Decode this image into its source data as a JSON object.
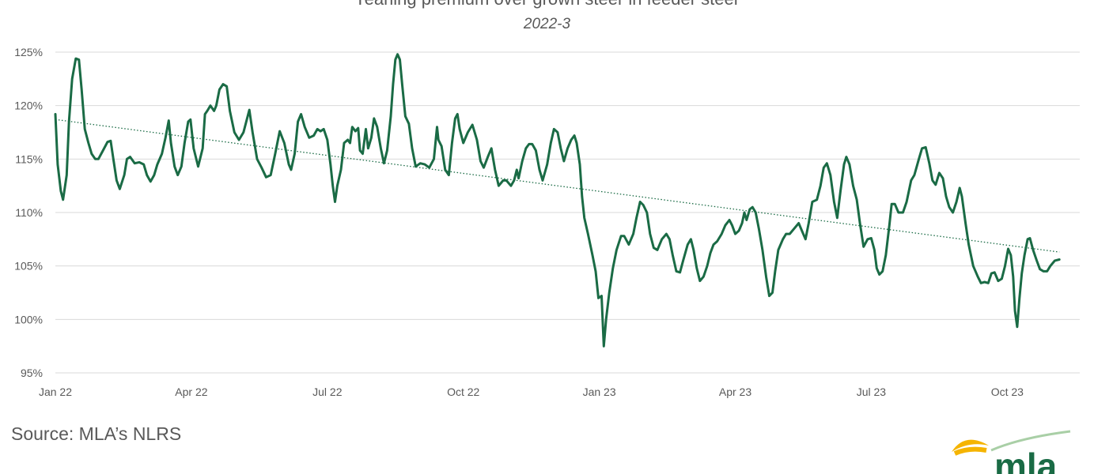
{
  "chart_data": {
    "type": "line",
    "title": "Yearling premium over grown steer in feeder steer",
    "subtitle": "2022-3",
    "ylim": [
      95,
      125
    ],
    "yticks": [
      95,
      100,
      105,
      110,
      115,
      120,
      125
    ],
    "ytick_labels": [
      "95%",
      "100%",
      "105%",
      "110%",
      "115%",
      "120%",
      "125%"
    ],
    "xlim": [
      0,
      22.6
    ],
    "xticks": [
      0,
      3,
      6,
      9,
      12,
      15,
      18,
      21
    ],
    "xtick_labels": [
      "Jan 22",
      "Apr 22",
      "Jul 22",
      "Oct 22",
      "Jan 23",
      "Apr 23",
      "Jul 23",
      "Oct 23"
    ],
    "grid": "horizontal",
    "series": [
      {
        "color": "#1a6b45",
        "points": [
          [
            0.0,
            119.2
          ],
          [
            0.05,
            114.5
          ],
          [
            0.12,
            112.0
          ],
          [
            0.17,
            111.2
          ],
          [
            0.25,
            113.5
          ],
          [
            0.3,
            118.5
          ],
          [
            0.37,
            122.5
          ],
          [
            0.45,
            124.4
          ],
          [
            0.52,
            124.3
          ],
          [
            0.58,
            121.5
          ],
          [
            0.65,
            117.8
          ],
          [
            0.73,
            116.5
          ],
          [
            0.8,
            115.5
          ],
          [
            0.88,
            115.0
          ],
          [
            0.95,
            115.0
          ],
          [
            1.05,
            115.8
          ],
          [
            1.15,
            116.6
          ],
          [
            1.22,
            116.7
          ],
          [
            1.28,
            115.0
          ],
          [
            1.35,
            113.0
          ],
          [
            1.42,
            112.2
          ],
          [
            1.52,
            113.5
          ],
          [
            1.58,
            115.0
          ],
          [
            1.65,
            115.2
          ],
          [
            1.75,
            114.6
          ],
          [
            1.85,
            114.7
          ],
          [
            1.95,
            114.5
          ],
          [
            2.02,
            113.5
          ],
          [
            2.1,
            112.9
          ],
          [
            2.18,
            113.5
          ],
          [
            2.25,
            114.5
          ],
          [
            2.35,
            115.5
          ],
          [
            2.43,
            117.0
          ],
          [
            2.5,
            118.6
          ],
          [
            2.55,
            116.5
          ],
          [
            2.63,
            114.3
          ],
          [
            2.7,
            113.5
          ],
          [
            2.78,
            114.3
          ],
          [
            2.85,
            116.5
          ],
          [
            2.93,
            118.5
          ],
          [
            2.98,
            118.7
          ],
          [
            3.05,
            116.0
          ],
          [
            3.15,
            114.3
          ],
          [
            3.25,
            116.0
          ],
          [
            3.3,
            119.2
          ],
          [
            3.35,
            119.5
          ],
          [
            3.42,
            120.0
          ],
          [
            3.5,
            119.5
          ],
          [
            3.55,
            120.0
          ],
          [
            3.62,
            121.5
          ],
          [
            3.7,
            122.0
          ],
          [
            3.78,
            121.8
          ],
          [
            3.85,
            119.5
          ],
          [
            3.95,
            117.5
          ],
          [
            4.05,
            116.8
          ],
          [
            4.15,
            117.5
          ],
          [
            4.28,
            119.6
          ],
          [
            4.35,
            117.5
          ],
          [
            4.45,
            115.0
          ],
          [
            4.55,
            114.2
          ],
          [
            4.65,
            113.3
          ],
          [
            4.75,
            113.5
          ],
          [
            4.85,
            115.5
          ],
          [
            4.95,
            117.6
          ],
          [
            5.05,
            116.5
          ],
          [
            5.15,
            114.5
          ],
          [
            5.2,
            114.0
          ],
          [
            5.28,
            115.5
          ],
          [
            5.35,
            118.5
          ],
          [
            5.42,
            119.2
          ],
          [
            5.5,
            118.0
          ],
          [
            5.6,
            117.0
          ],
          [
            5.7,
            117.2
          ],
          [
            5.78,
            117.8
          ],
          [
            5.85,
            117.6
          ],
          [
            5.92,
            117.8
          ],
          [
            6.0,
            116.8
          ],
          [
            6.07,
            114.5
          ],
          [
            6.12,
            112.5
          ],
          [
            6.17,
            111.0
          ],
          [
            6.22,
            112.5
          ],
          [
            6.3,
            114.0
          ],
          [
            6.37,
            116.5
          ],
          [
            6.45,
            116.8
          ],
          [
            6.5,
            116.5
          ],
          [
            6.55,
            118.0
          ],
          [
            6.62,
            117.6
          ],
          [
            6.68,
            117.9
          ],
          [
            6.72,
            115.8
          ],
          [
            6.78,
            115.5
          ],
          [
            6.85,
            117.8
          ],
          [
            6.9,
            116.0
          ],
          [
            6.97,
            117.0
          ],
          [
            7.03,
            118.8
          ],
          [
            7.1,
            118.0
          ],
          [
            7.18,
            116.0
          ],
          [
            7.25,
            114.6
          ],
          [
            7.32,
            115.8
          ],
          [
            7.4,
            119.0
          ],
          [
            7.45,
            122.0
          ],
          [
            7.5,
            124.3
          ],
          [
            7.55,
            124.8
          ],
          [
            7.6,
            124.3
          ],
          [
            7.65,
            122.0
          ],
          [
            7.72,
            119.0
          ],
          [
            7.8,
            118.3
          ],
          [
            7.87,
            116.0
          ],
          [
            7.95,
            114.3
          ],
          [
            8.05,
            114.6
          ],
          [
            8.15,
            114.5
          ],
          [
            8.25,
            114.2
          ],
          [
            8.35,
            115.0
          ],
          [
            8.42,
            118.0
          ],
          [
            8.45,
            116.8
          ],
          [
            8.52,
            116.2
          ],
          [
            8.6,
            114.0
          ],
          [
            8.68,
            113.5
          ],
          [
            8.75,
            116.5
          ],
          [
            8.82,
            118.8
          ],
          [
            8.87,
            119.2
          ],
          [
            8.92,
            117.8
          ],
          [
            9.0,
            116.5
          ],
          [
            9.1,
            117.5
          ],
          [
            9.2,
            118.2
          ],
          [
            9.3,
            116.8
          ],
          [
            9.38,
            114.8
          ],
          [
            9.45,
            114.2
          ],
          [
            9.55,
            115.3
          ],
          [
            9.62,
            116.0
          ],
          [
            9.7,
            114.0
          ],
          [
            9.78,
            112.5
          ],
          [
            9.88,
            113.0
          ],
          [
            9.95,
            113.0
          ],
          [
            10.05,
            112.5
          ],
          [
            10.12,
            113.0
          ],
          [
            10.18,
            114.0
          ],
          [
            10.22,
            113.2
          ],
          [
            10.3,
            114.8
          ],
          [
            10.38,
            116.0
          ],
          [
            10.45,
            116.4
          ],
          [
            10.52,
            116.4
          ],
          [
            10.6,
            115.8
          ],
          [
            10.68,
            114.0
          ],
          [
            10.75,
            113.0
          ],
          [
            10.85,
            114.5
          ],
          [
            10.93,
            116.5
          ],
          [
            11.0,
            117.8
          ],
          [
            11.08,
            117.5
          ],
          [
            11.15,
            116.0
          ],
          [
            11.22,
            114.8
          ],
          [
            11.3,
            116.0
          ],
          [
            11.38,
            116.8
          ],
          [
            11.45,
            117.2
          ],
          [
            11.5,
            116.5
          ],
          [
            11.57,
            114.5
          ],
          [
            11.62,
            111.5
          ],
          [
            11.67,
            109.5
          ],
          [
            11.75,
            108.0
          ],
          [
            11.85,
            106.0
          ],
          [
            11.92,
            104.5
          ],
          [
            11.98,
            102.0
          ],
          [
            12.05,
            102.2
          ],
          [
            12.1,
            97.5
          ],
          [
            12.15,
            100.0
          ],
          [
            12.22,
            102.5
          ],
          [
            12.3,
            104.8
          ],
          [
            12.38,
            106.5
          ],
          [
            12.48,
            107.8
          ],
          [
            12.55,
            107.8
          ],
          [
            12.65,
            107.0
          ],
          [
            12.75,
            108.0
          ],
          [
            12.82,
            109.5
          ],
          [
            12.9,
            111.0
          ],
          [
            12.97,
            110.7
          ],
          [
            13.05,
            110.0
          ],
          [
            13.12,
            108.0
          ],
          [
            13.2,
            106.7
          ],
          [
            13.28,
            106.5
          ],
          [
            13.38,
            107.5
          ],
          [
            13.48,
            108.0
          ],
          [
            13.55,
            107.5
          ],
          [
            13.62,
            106.0
          ],
          [
            13.7,
            104.5
          ],
          [
            13.78,
            104.4
          ],
          [
            13.85,
            105.5
          ],
          [
            13.95,
            107.0
          ],
          [
            14.02,
            107.5
          ],
          [
            14.08,
            106.5
          ],
          [
            14.15,
            104.8
          ],
          [
            14.22,
            103.6
          ],
          [
            14.3,
            104.0
          ],
          [
            14.38,
            105.0
          ],
          [
            14.45,
            106.2
          ],
          [
            14.52,
            107.0
          ],
          [
            14.6,
            107.3
          ],
          [
            14.7,
            108.0
          ],
          [
            14.78,
            108.8
          ],
          [
            14.87,
            109.3
          ],
          [
            14.93,
            108.8
          ],
          [
            15.0,
            108.0
          ],
          [
            15.08,
            108.3
          ],
          [
            15.15,
            109.0
          ],
          [
            15.2,
            110.0
          ],
          [
            15.25,
            109.3
          ],
          [
            15.32,
            110.3
          ],
          [
            15.38,
            110.5
          ],
          [
            15.45,
            110.0
          ],
          [
            15.52,
            108.5
          ],
          [
            15.6,
            106.5
          ],
          [
            15.68,
            104.0
          ],
          [
            15.75,
            102.2
          ],
          [
            15.82,
            102.5
          ],
          [
            15.88,
            104.5
          ],
          [
            15.95,
            106.5
          ],
          [
            16.05,
            107.5
          ],
          [
            16.12,
            108.0
          ],
          [
            16.2,
            108.0
          ],
          [
            16.3,
            108.5
          ],
          [
            16.4,
            109.0
          ],
          [
            16.48,
            108.2
          ],
          [
            16.55,
            107.5
          ],
          [
            16.62,
            109.0
          ],
          [
            16.7,
            111.0
          ],
          [
            16.8,
            111.2
          ],
          [
            16.88,
            112.5
          ],
          [
            16.95,
            114.2
          ],
          [
            17.02,
            114.6
          ],
          [
            17.1,
            113.5
          ],
          [
            17.18,
            111.0
          ],
          [
            17.25,
            109.5
          ],
          [
            17.32,
            112.0
          ],
          [
            17.4,
            114.5
          ],
          [
            17.45,
            115.2
          ],
          [
            17.52,
            114.5
          ],
          [
            17.6,
            112.5
          ],
          [
            17.68,
            111.2
          ],
          [
            17.75,
            109.0
          ],
          [
            17.83,
            106.8
          ],
          [
            17.92,
            107.5
          ],
          [
            18.0,
            107.6
          ],
          [
            18.07,
            106.5
          ],
          [
            18.12,
            104.8
          ],
          [
            18.18,
            104.2
          ],
          [
            18.25,
            104.5
          ],
          [
            18.32,
            106.0
          ],
          [
            18.4,
            108.8
          ],
          [
            18.45,
            110.8
          ],
          [
            18.52,
            110.8
          ],
          [
            18.6,
            110.0
          ],
          [
            18.7,
            110.0
          ],
          [
            18.78,
            111.0
          ],
          [
            18.88,
            113.0
          ],
          [
            18.95,
            113.5
          ],
          [
            19.05,
            115.0
          ],
          [
            19.12,
            116.0
          ],
          [
            19.2,
            116.1
          ],
          [
            19.28,
            114.6
          ],
          [
            19.35,
            113.0
          ],
          [
            19.42,
            112.6
          ],
          [
            19.5,
            113.7
          ],
          [
            19.58,
            113.2
          ],
          [
            19.65,
            111.5
          ],
          [
            19.72,
            110.5
          ],
          [
            19.8,
            110.0
          ],
          [
            19.88,
            111.0
          ],
          [
            19.95,
            112.3
          ],
          [
            20.0,
            111.5
          ],
          [
            20.08,
            109.0
          ],
          [
            20.15,
            107.0
          ],
          [
            20.25,
            105.0
          ],
          [
            20.35,
            104.0
          ],
          [
            20.42,
            103.4
          ],
          [
            20.5,
            103.5
          ],
          [
            20.58,
            103.4
          ],
          [
            20.65,
            104.3
          ],
          [
            20.72,
            104.4
          ],
          [
            20.8,
            103.6
          ],
          [
            20.88,
            103.8
          ],
          [
            20.95,
            105.0
          ],
          [
            21.02,
            106.6
          ],
          [
            21.08,
            106.0
          ],
          [
            21.13,
            104.0
          ],
          [
            21.17,
            100.8
          ],
          [
            21.22,
            99.3
          ],
          [
            21.27,
            102.0
          ],
          [
            21.32,
            104.3
          ],
          [
            21.38,
            106.0
          ],
          [
            21.45,
            107.5
          ],
          [
            21.5,
            107.6
          ],
          [
            21.57,
            106.5
          ],
          [
            21.65,
            105.5
          ],
          [
            21.72,
            104.7
          ],
          [
            21.8,
            104.5
          ],
          [
            21.88,
            104.5
          ],
          [
            21.95,
            105.0
          ],
          [
            22.05,
            105.5
          ],
          [
            22.15,
            105.6
          ]
        ]
      }
    ],
    "trendline": {
      "style": "dotted",
      "from": [
        0.0,
        118.7
      ],
      "to": [
        22.15,
        106.3
      ]
    }
  },
  "source": "Source: MLA’s NLRS",
  "logo": {
    "text": "mla",
    "colors": {
      "sun": "#f5b400",
      "brand": "#1a6b45",
      "swoosh": "#a9cfa6"
    }
  }
}
